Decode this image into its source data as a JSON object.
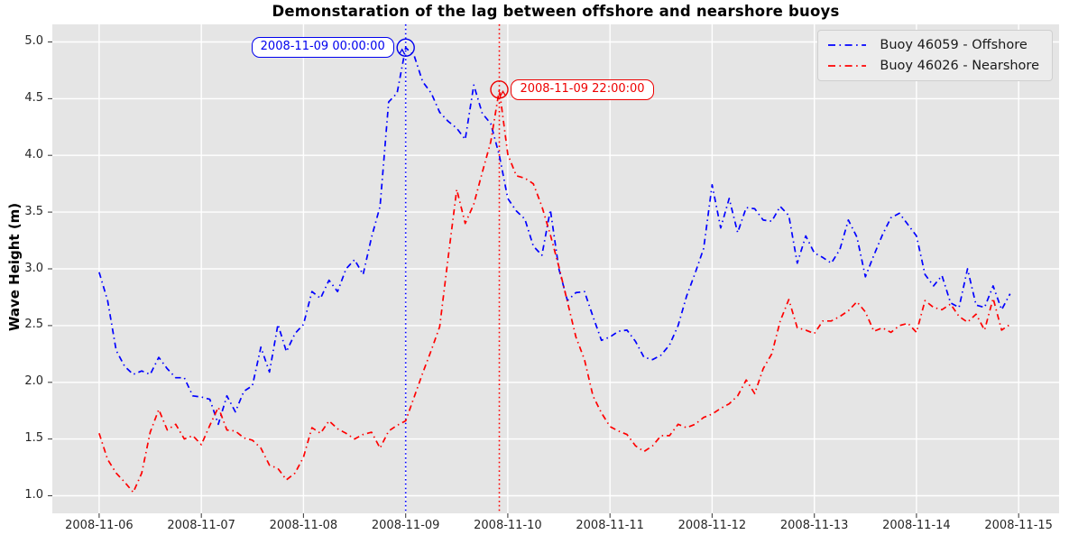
{
  "title": "Demonstaration of the lag between offshore and nearshore buoys",
  "axes": {
    "y_label": "Wave Height (m)",
    "x_ticks": [
      "2008-11-06",
      "2008-11-07",
      "2008-11-08",
      "2008-11-09",
      "2008-11-10",
      "2008-11-11",
      "2008-11-12",
      "2008-11-13",
      "2008-11-14",
      "2008-11-15"
    ],
    "y_ticks": [
      "1.0",
      "1.5",
      "2.0",
      "2.5",
      "3.0",
      "3.5",
      "4.0",
      "4.5",
      "5.0"
    ]
  },
  "legend": {
    "entries": [
      {
        "label": "Buoy 46059 - Offshore",
        "color": "#0000ff",
        "style": "dashdot"
      },
      {
        "label": "Buoy 46026 - Nearshore",
        "color": "#ff0000",
        "style": "dashdot"
      }
    ]
  },
  "colors": {
    "panel_bg": "#e5e5e5",
    "grid": "#ffffff",
    "offshore": "#0000ff",
    "nearshore": "#ff0000",
    "tick": "#444444"
  },
  "chart_data": {
    "type": "line",
    "title": "Demonstaration of the lag between offshore and nearshore buoys",
    "xlabel": "",
    "ylabel": "Wave Height (m)",
    "x_unit": "hours since 2008-11-06 00:00",
    "x_start_hours": 0,
    "x_step_hours": 2,
    "xlim_hours": [
      -11,
      225.5
    ],
    "ylim": [
      0.845,
      5.155
    ],
    "grid": true,
    "legend_position": "upper right",
    "x_tick_days": [
      "2008-11-06",
      "2008-11-07",
      "2008-11-08",
      "2008-11-09",
      "2008-11-10",
      "2008-11-11",
      "2008-11-12",
      "2008-11-13",
      "2008-11-14",
      "2008-11-15"
    ],
    "y_tick_values": [
      1.0,
      1.5,
      2.0,
      2.5,
      3.0,
      3.5,
      4.0,
      4.5,
      5.0
    ],
    "series": [
      {
        "name": "Buoy 46059 - Offshore",
        "color": "#0000ff",
        "linestyle": "dashdot",
        "values": [
          2.97,
          2.72,
          2.28,
          2.14,
          2.07,
          2.1,
          2.07,
          2.22,
          2.12,
          2.04,
          2.04,
          1.88,
          1.87,
          1.85,
          1.63,
          1.88,
          1.74,
          1.92,
          1.97,
          2.31,
          2.09,
          2.51,
          2.27,
          2.43,
          2.51,
          2.8,
          2.74,
          2.9,
          2.8,
          3.0,
          3.08,
          2.95,
          3.28,
          3.55,
          4.47,
          4.55,
          4.95,
          4.88,
          4.65,
          4.55,
          4.38,
          4.3,
          4.24,
          4.14,
          4.62,
          4.37,
          4.28,
          4.0,
          3.62,
          3.51,
          3.44,
          3.2,
          3.12,
          3.52,
          3.0,
          2.72,
          2.79,
          2.8,
          2.58,
          2.37,
          2.4,
          2.45,
          2.46,
          2.36,
          2.22,
          2.2,
          2.24,
          2.33,
          2.5,
          2.76,
          2.96,
          3.18,
          3.74,
          3.36,
          3.62,
          3.32,
          3.54,
          3.53,
          3.43,
          3.42,
          3.55,
          3.47,
          3.05,
          3.29,
          3.14,
          3.1,
          3.05,
          3.17,
          3.43,
          3.28,
          2.93,
          3.12,
          3.3,
          3.45,
          3.49,
          3.39,
          3.29,
          2.95,
          2.85,
          2.94,
          2.7,
          2.66,
          3.0,
          2.68,
          2.66,
          2.85,
          2.64,
          2.78
        ]
      },
      {
        "name": "Buoy 46026 - Nearshore",
        "color": "#ff0000",
        "linestyle": "dashdot",
        "values": [
          1.55,
          1.32,
          1.2,
          1.12,
          1.03,
          1.2,
          1.56,
          1.76,
          1.58,
          1.63,
          1.5,
          1.53,
          1.45,
          1.62,
          1.78,
          1.58,
          1.57,
          1.51,
          1.49,
          1.42,
          1.27,
          1.24,
          1.14,
          1.2,
          1.34,
          1.6,
          1.55,
          1.66,
          1.59,
          1.55,
          1.5,
          1.54,
          1.56,
          1.42,
          1.57,
          1.62,
          1.66,
          1.87,
          2.08,
          2.28,
          2.49,
          3.1,
          3.7,
          3.4,
          3.57,
          3.85,
          4.12,
          4.58,
          4.01,
          3.82,
          3.8,
          3.75,
          3.55,
          3.3,
          3.02,
          2.71,
          2.4,
          2.2,
          1.88,
          1.73,
          1.61,
          1.57,
          1.54,
          1.44,
          1.39,
          1.44,
          1.53,
          1.53,
          1.63,
          1.6,
          1.63,
          1.69,
          1.72,
          1.77,
          1.81,
          1.88,
          2.02,
          1.9,
          2.12,
          2.25,
          2.54,
          2.73,
          2.48,
          2.46,
          2.43,
          2.54,
          2.54,
          2.58,
          2.63,
          2.71,
          2.62,
          2.45,
          2.48,
          2.44,
          2.5,
          2.52,
          2.44,
          2.72,
          2.66,
          2.64,
          2.69,
          2.58,
          2.53,
          2.6,
          2.46,
          2.74,
          2.46,
          2.51
        ]
      }
    ],
    "vlines": [
      {
        "at_hours": 72,
        "color": "#0000ff",
        "style": "dotted"
      },
      {
        "at_hours": 94,
        "color": "#ff0000",
        "style": "dotted"
      }
    ],
    "annotations": [
      {
        "text": "2008-11-09 00:00:00",
        "color": "#0000ee",
        "point_hours": 72,
        "point_value": 4.95,
        "text_side": "left"
      },
      {
        "text": "2008-11-09 22:00:00",
        "color": "#ee0000",
        "point_hours": 94,
        "point_value": 4.58,
        "text_side": "right"
      }
    ]
  }
}
